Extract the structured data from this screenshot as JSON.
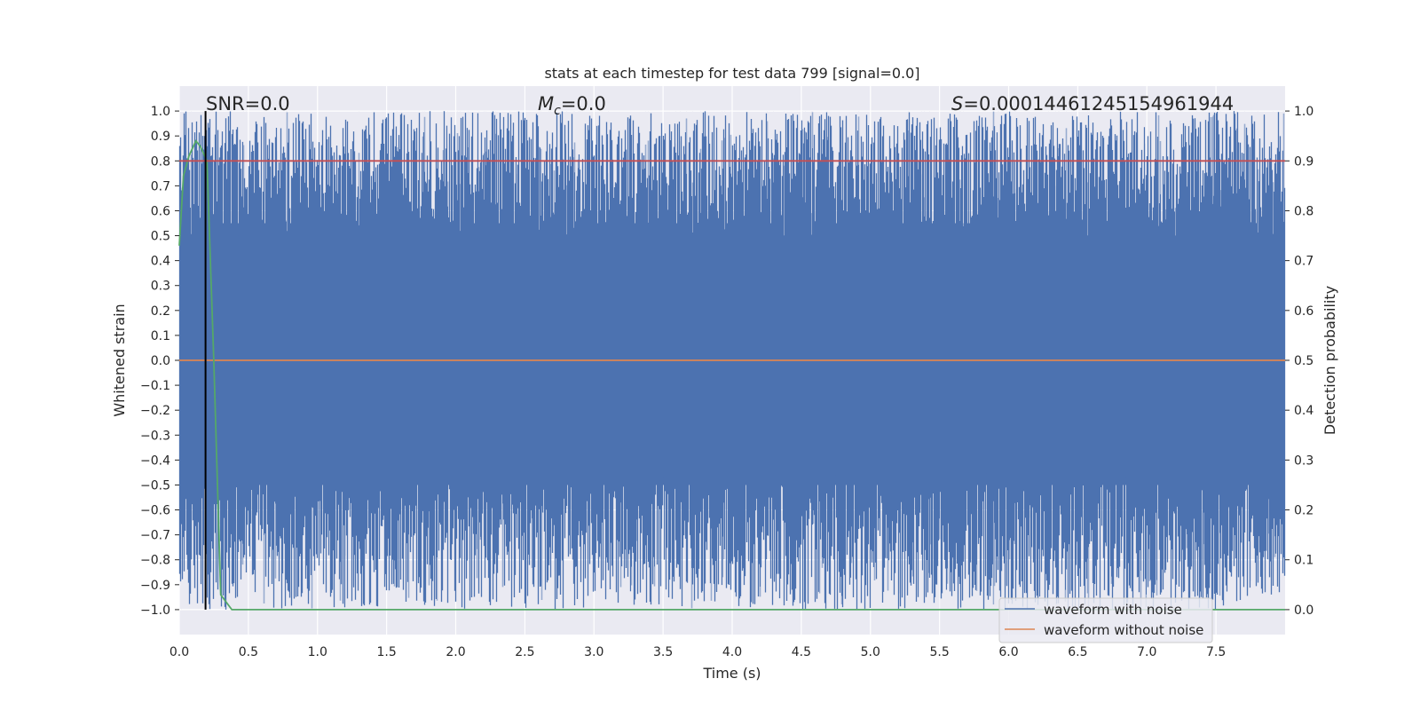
{
  "chart_data": {
    "type": "line",
    "title": "stats at each timestep for test data 799 [signal=0.0]",
    "xlabel": "Time (s)",
    "ylabel": "Whitened strain",
    "ylabel_right": "Detection probability",
    "xlim": [
      0.0,
      8.0
    ],
    "ylim": [
      -1.1,
      1.1
    ],
    "ylim_right": [
      -0.05,
      1.05
    ],
    "xticks": [
      "0.0",
      "0.5",
      "1.0",
      "1.5",
      "2.0",
      "2.5",
      "3.0",
      "3.5",
      "4.0",
      "4.5",
      "5.0",
      "5.5",
      "6.0",
      "6.5",
      "7.0",
      "7.5"
    ],
    "yticks": [
      "1.0",
      "0.9",
      "0.8",
      "0.7",
      "0.6",
      "0.5",
      "0.4",
      "0.3",
      "0.2",
      "0.1",
      "0.0",
      "−0.1",
      "−0.2",
      "−0.3",
      "−0.4",
      "−0.5",
      "−0.6",
      "−0.7",
      "−0.8",
      "−0.9",
      "−1.0"
    ],
    "yticks_right": [
      "1.0",
      "0.9",
      "0.8",
      "0.7",
      "0.6",
      "0.5",
      "0.4",
      "0.3",
      "0.2",
      "0.1",
      "0.0"
    ],
    "annotations": {
      "snr": "SNR=0.0",
      "mc_symbol": "M",
      "mc_sub": "c",
      "mc_value": "=0.0",
      "s_symbol": "S",
      "s_value": "=0.00014461245154961944"
    },
    "legend": {
      "placement": "lower-right",
      "entries": [
        "waveform with noise",
        "waveform without noise"
      ]
    },
    "series": [
      {
        "name": "waveform with noise",
        "color": "#4c72b0",
        "description_kind": "dense noise band, roughly between -0.9 and 0.9 strain over 0-8 s"
      },
      {
        "name": "waveform without noise",
        "color": "#dd8452",
        "x": [
          0.0,
          8.0
        ],
        "y": [
          0.0,
          0.0
        ]
      },
      {
        "color": "#55a868",
        "axis": "right",
        "x": [
          0.0,
          0.03,
          0.07,
          0.12,
          0.15,
          0.2,
          0.25,
          0.3,
          0.38,
          8.0
        ],
        "y": [
          0.73,
          0.87,
          0.91,
          0.94,
          0.93,
          0.9,
          0.5,
          0.03,
          0.0,
          0.0
        ]
      },
      {
        "color": "#c44e52",
        "axis": "right",
        "x": [
          0.0,
          8.0
        ],
        "y": [
          0.9,
          0.9
        ]
      },
      {
        "color": "#000000",
        "kind": "vline",
        "x": 0.19
      }
    ]
  }
}
